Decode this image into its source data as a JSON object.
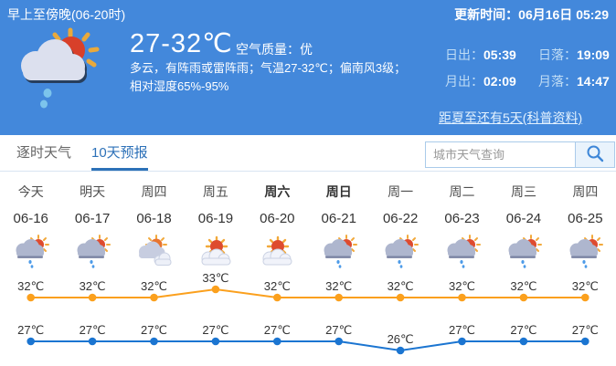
{
  "banner": {
    "period_label": "早上至傍晚(06-20时)",
    "update_time": "更新时间：06月16日 05:29",
    "weather_icon": "sun-cloud-rain-icon",
    "temp_range": "27-32℃",
    "air_quality": "空气质量：优",
    "description_line1": "多云，有阵雨或雷阵雨；气温27-32℃；偏南风3级；",
    "description_line2": "相对湿度65%-95%",
    "sun_moon": [
      {
        "label": "日出：",
        "value": "05:39"
      },
      {
        "label": "日落：",
        "value": "19:09"
      },
      {
        "label": "月出：",
        "value": "02:09"
      },
      {
        "label": "月落：",
        "value": "14:47"
      }
    ],
    "solstice_link": "距夏至还有5天(科普资料)"
  },
  "tabs": {
    "items": [
      {
        "label": "逐时天气",
        "active": false
      },
      {
        "label": "10天预报",
        "active": true
      }
    ]
  },
  "search": {
    "placeholder": "城市天气查询",
    "icon": "search-icon"
  },
  "forecast": {
    "days": [
      {
        "name": "今天",
        "date": "06-16",
        "icon": "shower",
        "bold": false
      },
      {
        "name": "明天",
        "date": "06-17",
        "icon": "shower",
        "bold": false
      },
      {
        "name": "周四",
        "date": "06-18",
        "icon": "cloudy",
        "bold": false
      },
      {
        "name": "周五",
        "date": "06-19",
        "icon": "partly-sunny",
        "bold": false
      },
      {
        "name": "周六",
        "date": "06-20",
        "icon": "partly-sunny",
        "bold": true
      },
      {
        "name": "周日",
        "date": "06-21",
        "icon": "shower",
        "bold": true
      },
      {
        "name": "周一",
        "date": "06-22",
        "icon": "shower",
        "bold": false
      },
      {
        "name": "周二",
        "date": "06-23",
        "icon": "shower",
        "bold": false
      },
      {
        "name": "周三",
        "date": "06-24",
        "icon": "shower",
        "bold": false
      },
      {
        "name": "周四",
        "date": "06-25",
        "icon": "shower",
        "bold": false
      }
    ]
  },
  "chart_data": {
    "type": "line",
    "categories": [
      "06-16",
      "06-17",
      "06-18",
      "06-19",
      "06-20",
      "06-21",
      "06-22",
      "06-23",
      "06-24",
      "06-25"
    ],
    "unit": "℃",
    "series": [
      {
        "key": "high",
        "color": "#FBA01D",
        "values": [
          32,
          32,
          32,
          33,
          32,
          32,
          32,
          32,
          32,
          32
        ]
      },
      {
        "key": "low",
        "color": "#1B75D1",
        "values": [
          27,
          27,
          27,
          27,
          27,
          27,
          26,
          27,
          27,
          27
        ]
      }
    ],
    "ylim_high": [
      32,
      33
    ],
    "ylim_low": [
      26,
      27
    ],
    "grid": false,
    "legend": "none",
    "label_color": "#333333"
  },
  "colors": {
    "banner_bg": "#4388DB",
    "tab_active": "#2D71B8",
    "high_line": "#FBA01D",
    "low_line": "#1B75D1"
  }
}
